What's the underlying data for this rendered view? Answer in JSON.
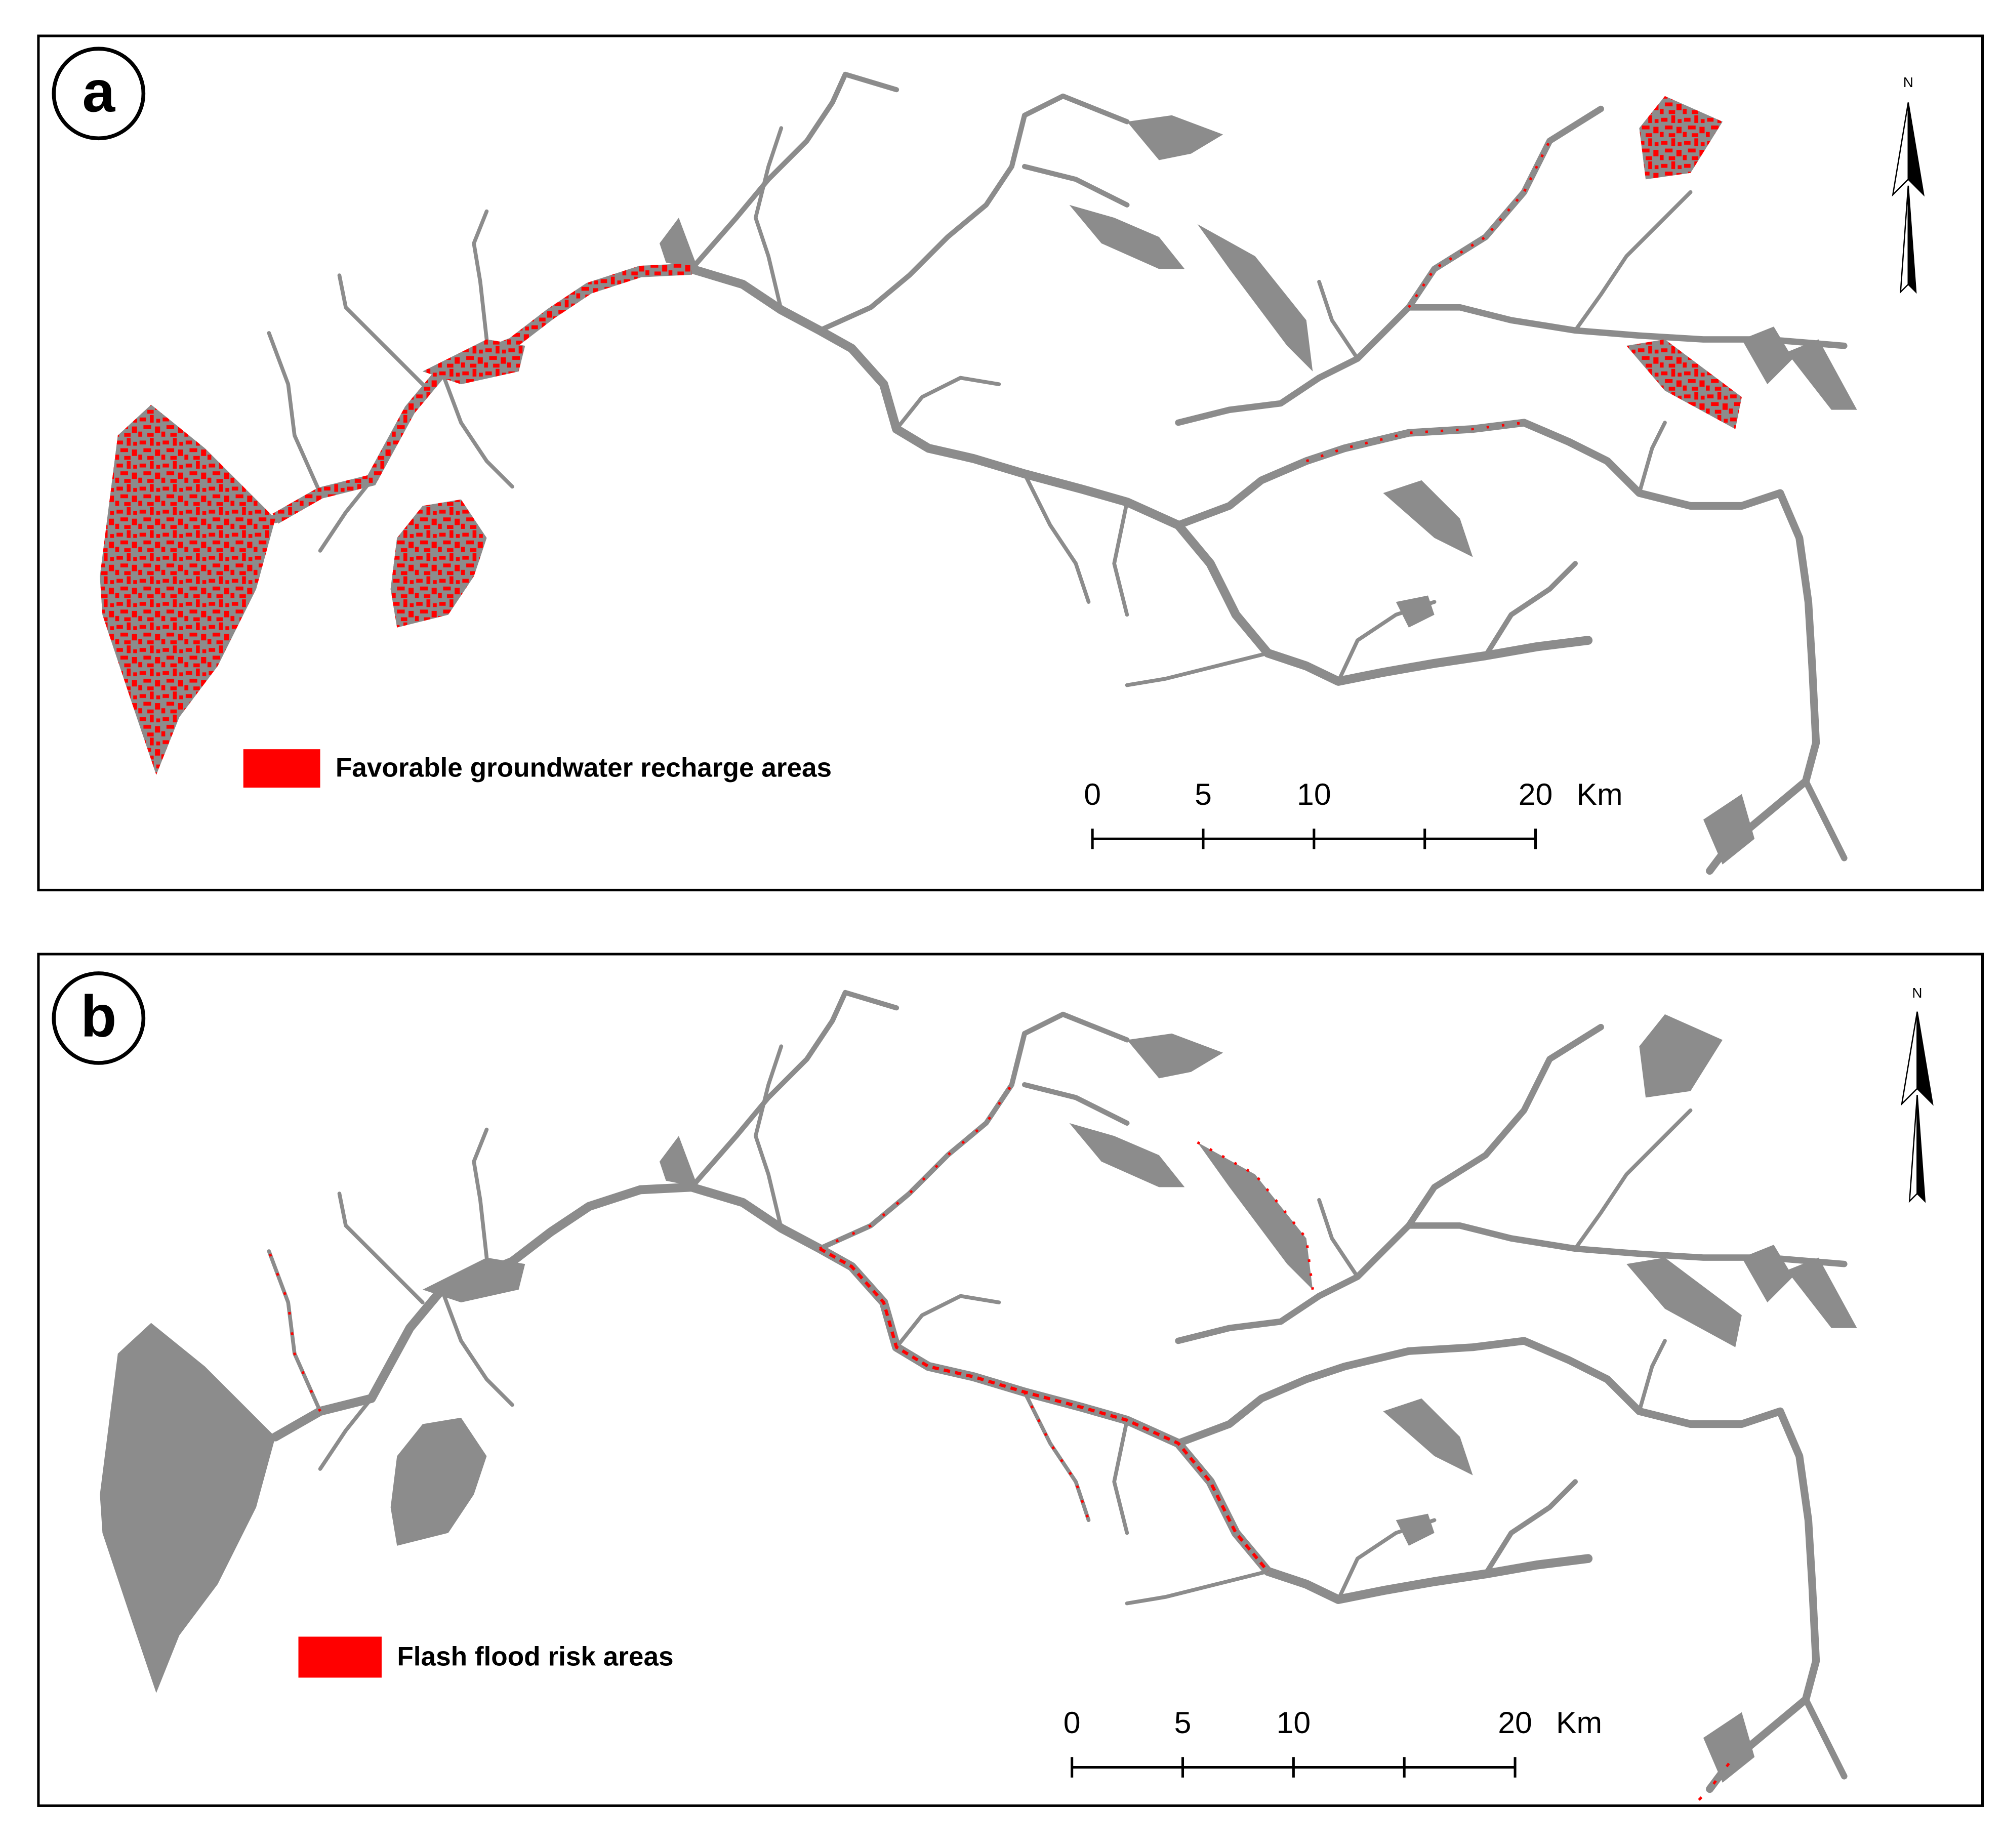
{
  "panels": [
    {
      "label": "a",
      "legend": "Favorable groundwater recharge areas",
      "legend_color": "#ff0000",
      "north": "N",
      "scale_bar": {
        "ticks": [
          0,
          5,
          10,
          20
        ],
        "unit": "Km"
      }
    },
    {
      "label": "b",
      "legend": "Flash flood risk areas",
      "legend_color": "#ff0000",
      "north": "N",
      "scale_bar": {
        "ticks": [
          0,
          5,
          10,
          20
        ],
        "unit": "Km"
      }
    }
  ]
}
